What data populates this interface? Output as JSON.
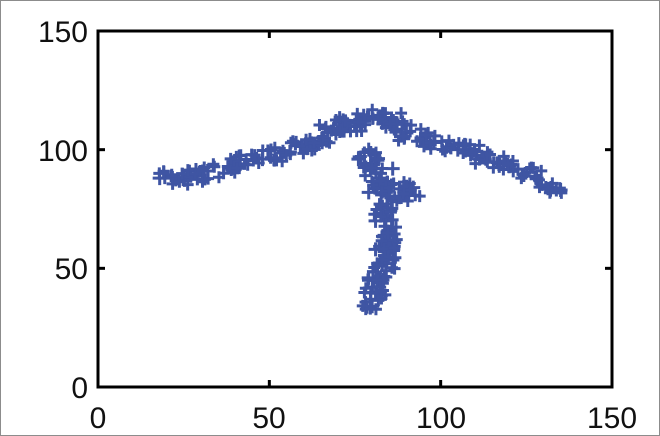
{
  "chart_data": {
    "type": "scatter",
    "title": "",
    "xlabel": "",
    "ylabel": "",
    "xlim": [
      0,
      150
    ],
    "ylim": [
      0,
      150
    ],
    "grid": false,
    "legend": "none",
    "x_ticks": [
      0,
      50,
      100,
      150
    ],
    "y_ticks": [
      0,
      50,
      100,
      150
    ],
    "x_tick_labels": [
      "0",
      "50",
      "100",
      "150"
    ],
    "y_tick_labels": [
      "0",
      "50",
      "100",
      "150"
    ],
    "marker_color": "#3f55a3",
    "series": [
      {
        "name": "",
        "points": [
          [
            18,
            88
          ],
          [
            25,
            88
          ],
          [
            32,
            91
          ],
          [
            40,
            94
          ],
          [
            48,
            96
          ],
          [
            56,
            99
          ],
          [
            62,
            102
          ],
          [
            67,
            107
          ],
          [
            72,
            110
          ],
          [
            77,
            112
          ],
          [
            82,
            114
          ],
          [
            86,
            112
          ],
          [
            90,
            107
          ],
          [
            98,
            103
          ],
          [
            105,
            100
          ],
          [
            112,
            97
          ],
          [
            120,
            93
          ],
          [
            128,
            88
          ],
          [
            135,
            83
          ],
          [
            79,
            100
          ],
          [
            80,
            94
          ],
          [
            82,
            88
          ],
          [
            84,
            82
          ],
          [
            88,
            80
          ],
          [
            92,
            84
          ],
          [
            83,
            76
          ],
          [
            84,
            70
          ],
          [
            85,
            64
          ],
          [
            84,
            58
          ],
          [
            84,
            52
          ],
          [
            82,
            46
          ],
          [
            81,
            40
          ],
          [
            80,
            34
          ],
          [
            79,
            46
          ],
          [
            81,
            58
          ],
          [
            81,
            70
          ],
          [
            79,
            82
          ],
          [
            86,
            92
          ],
          [
            76,
            96
          ]
        ]
      }
    ]
  }
}
